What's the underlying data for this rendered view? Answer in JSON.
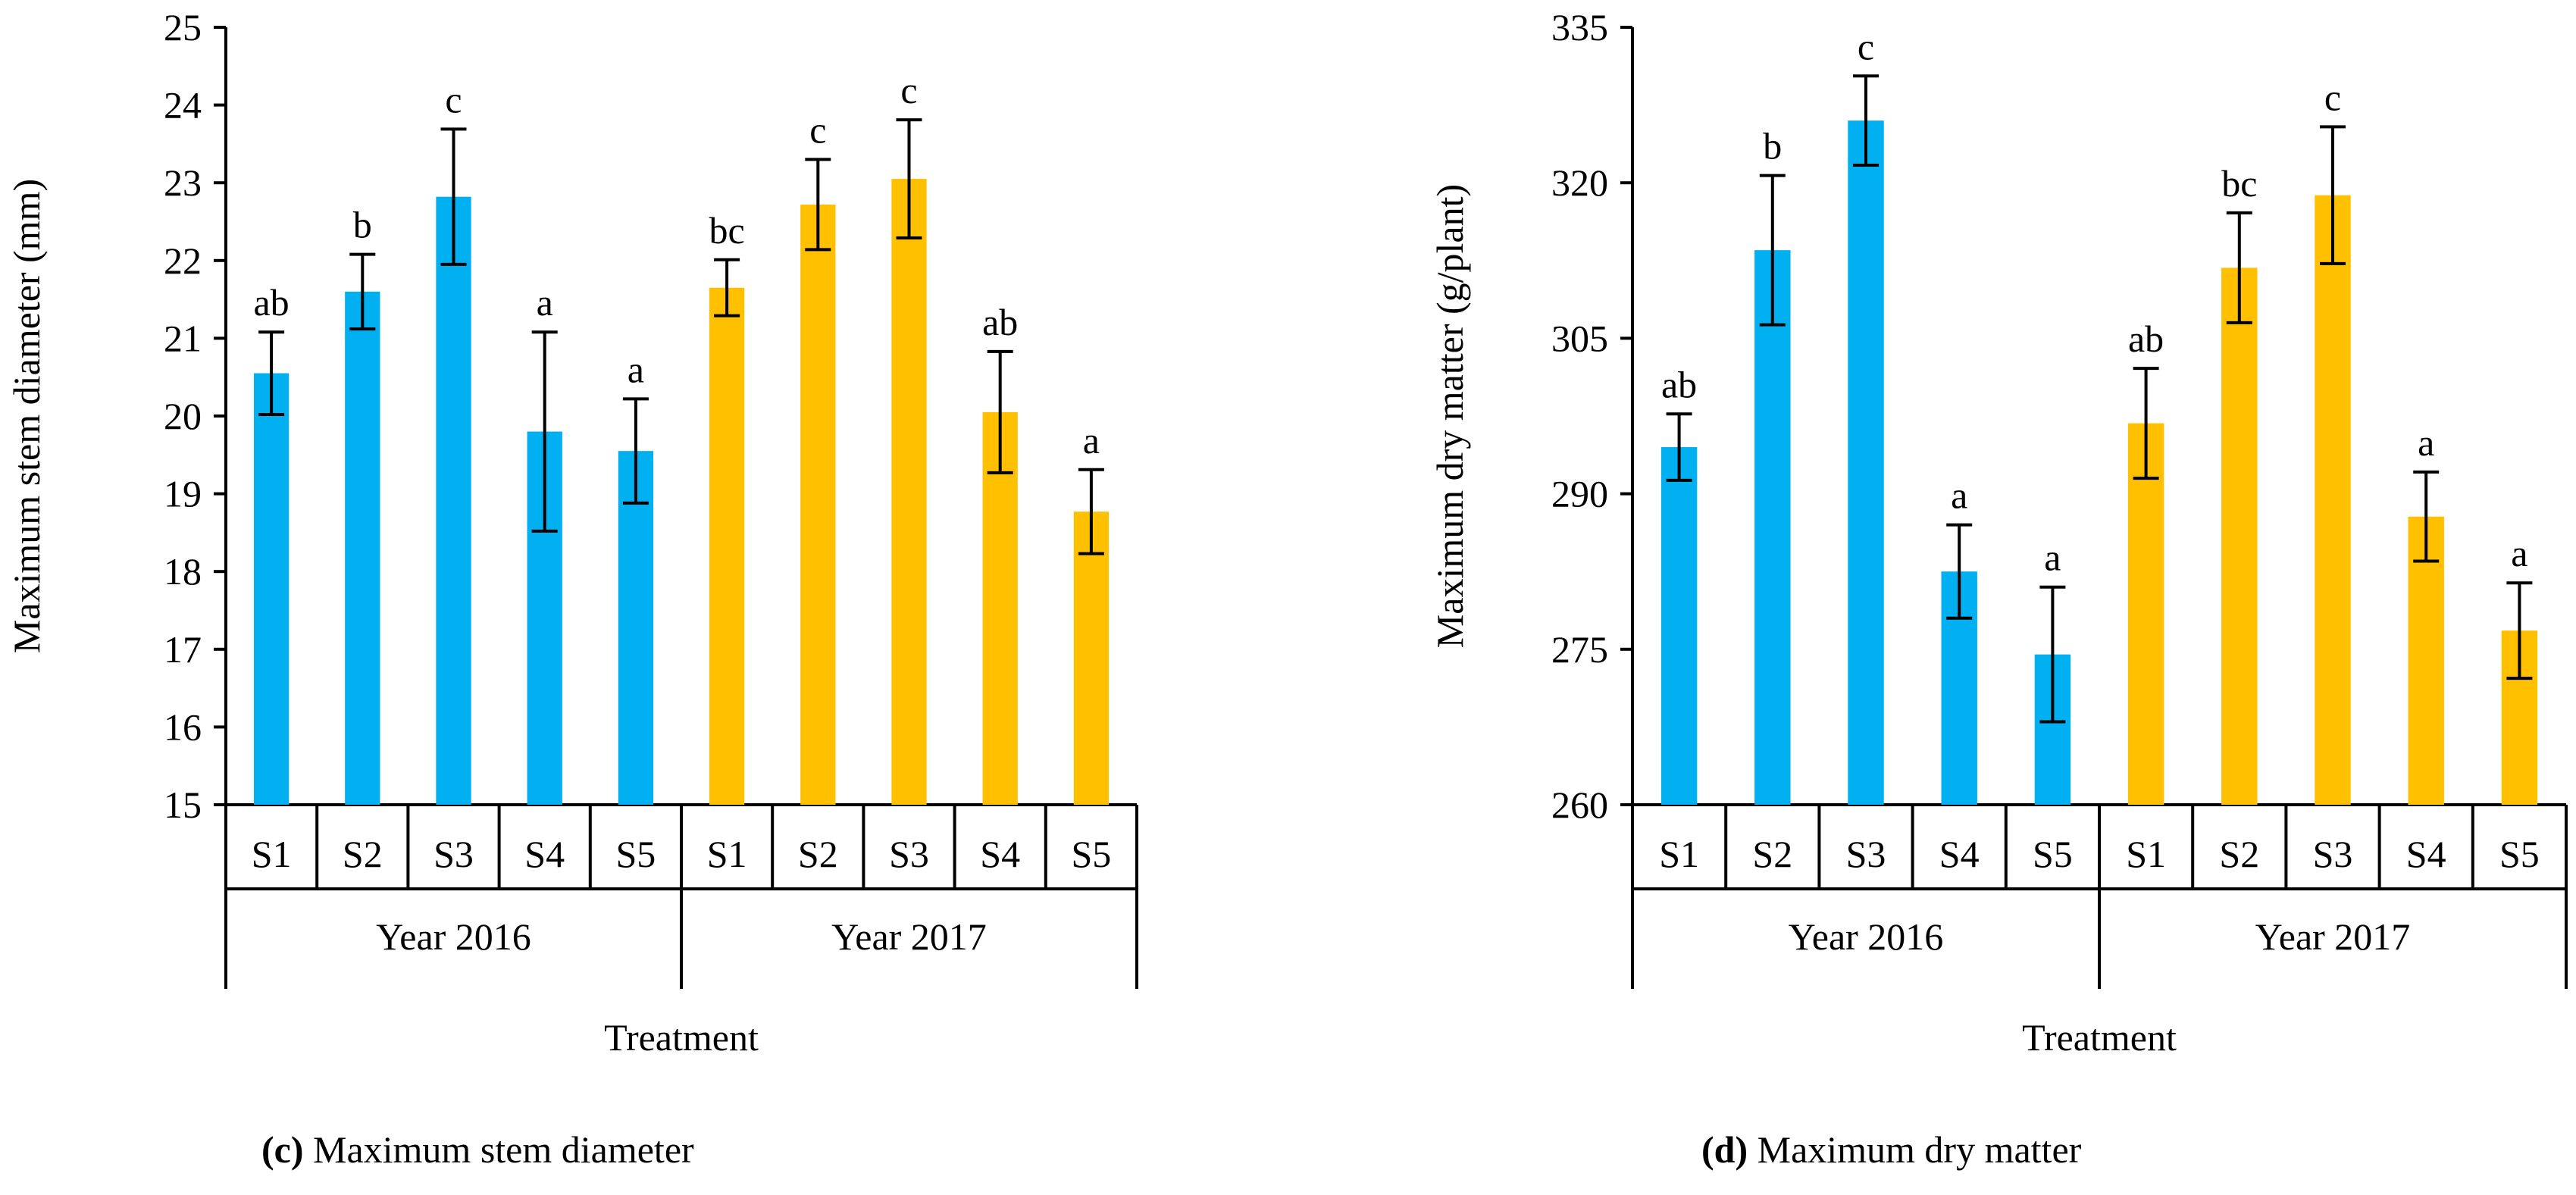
{
  "chart_data": [
    {
      "type": "bar",
      "ylabel": "Maximum stem diameter (mm)",
      "xlabel": "Treatment",
      "ylim": [
        15,
        25
      ],
      "yticks": [
        15,
        16,
        17,
        18,
        19,
        20,
        21,
        22,
        23,
        24,
        25
      ],
      "groups": [
        "Year 2016",
        "Year 2017"
      ],
      "categories": [
        "S1",
        "S2",
        "S3",
        "S4",
        "S5"
      ],
      "series": [
        {
          "name": "Year 2016",
          "color": "#00B0F0",
          "values": [
            20.55,
            21.6,
            22.82,
            19.8,
            19.55
          ],
          "errors": [
            0.53,
            0.48,
            0.87,
            1.28,
            0.67
          ],
          "letters": [
            "ab",
            "b",
            "c",
            "a",
            "a"
          ]
        },
        {
          "name": "Year 2017",
          "color": "#FFC000",
          "values": [
            21.65,
            22.72,
            23.05,
            20.05,
            18.77
          ],
          "errors": [
            0.36,
            0.58,
            0.76,
            0.78,
            0.54
          ],
          "letters": [
            "bc",
            "c",
            "c",
            "ab",
            "a"
          ]
        }
      ],
      "caption_label": "(c)",
      "caption_text": "Maximum stem diameter"
    },
    {
      "type": "bar",
      "ylabel": "Maximum dry matter (g/plant)",
      "xlabel": "Treatment",
      "ylim": [
        260,
        335
      ],
      "yticks": [
        260,
        275,
        290,
        305,
        320,
        335
      ],
      "groups": [
        "Year 2016",
        "Year 2017"
      ],
      "categories": [
        "S1",
        "S2",
        "S3",
        "S4",
        "S5"
      ],
      "series": [
        {
          "name": "Year 2016",
          "color": "#00B0F0",
          "values": [
            294.5,
            313.5,
            326.0,
            282.5,
            274.5
          ],
          "errors": [
            3.2,
            7.2,
            4.3,
            4.5,
            6.5
          ],
          "letters": [
            "ab",
            "b",
            "c",
            "a",
            "a"
          ]
        },
        {
          "name": "Year 2017",
          "color": "#FFC000",
          "values": [
            296.8,
            311.8,
            318.8,
            287.8,
            276.8
          ],
          "errors": [
            5.3,
            5.3,
            6.6,
            4.3,
            4.6
          ],
          "letters": [
            "ab",
            "bc",
            "c",
            "a",
            "a"
          ]
        }
      ],
      "caption_label": "(d)",
      "caption_text": "Maximum dry matter"
    }
  ]
}
